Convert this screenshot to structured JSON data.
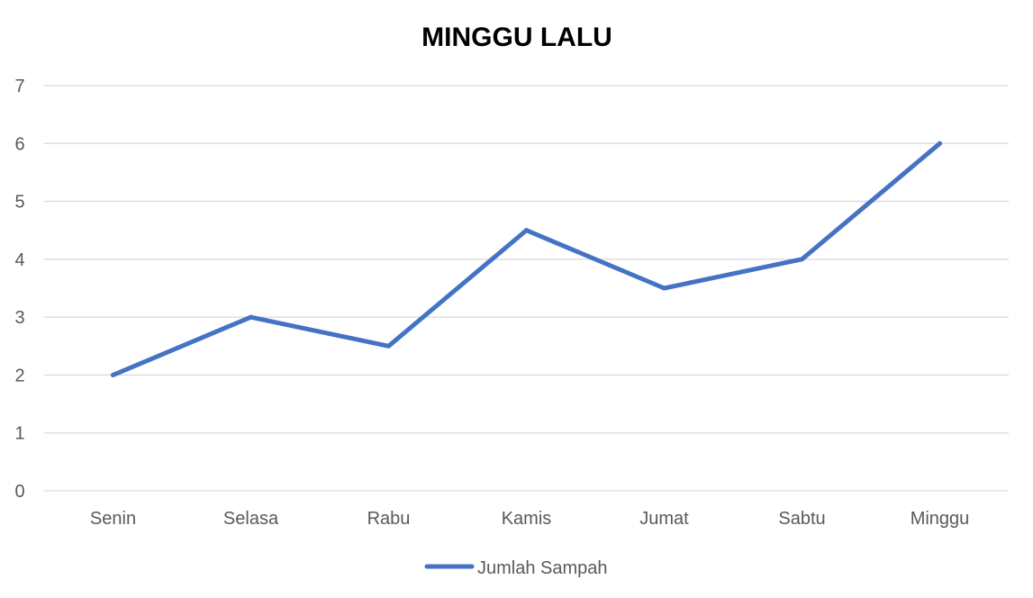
{
  "chart_data": {
    "type": "line",
    "title": "MINGGU LALU",
    "xlabel": "",
    "ylabel": "",
    "categories": [
      "Senin",
      "Selasa",
      "Rabu",
      "Kamis",
      "Jumat",
      "Sabtu",
      "Minggu"
    ],
    "series": [
      {
        "name": "Jumlah Sampah",
        "values": [
          2,
          3,
          2.5,
          4.5,
          3.5,
          4,
          6
        ]
      }
    ],
    "ylim": [
      0,
      7
    ],
    "yticks": [
      0,
      1,
      2,
      3,
      4,
      5,
      6,
      7
    ],
    "grid": true,
    "legend": "bottom",
    "colors": {
      "series": "#4472c4",
      "grid": "#d9d9d9",
      "ticks": "#595959",
      "title": "#000000"
    }
  }
}
